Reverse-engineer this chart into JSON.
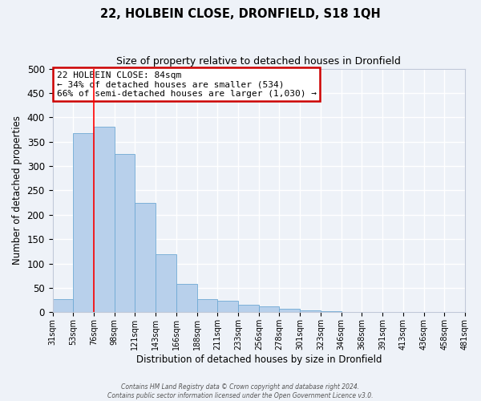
{
  "title": "22, HOLBEIN CLOSE, DRONFIELD, S18 1QH",
  "subtitle": "Size of property relative to detached houses in Dronfield",
  "xlabel": "Distribution of detached houses by size in Dronfield",
  "ylabel": "Number of detached properties",
  "bar_values": [
    27,
    367,
    381,
    325,
    225,
    120,
    58,
    27,
    23,
    15,
    12,
    7,
    4,
    2,
    1,
    1,
    1,
    0,
    0,
    1
  ],
  "bar_labels": [
    "31sqm",
    "53sqm",
    "76sqm",
    "98sqm",
    "121sqm",
    "143sqm",
    "166sqm",
    "188sqm",
    "211sqm",
    "233sqm",
    "256sqm",
    "278sqm",
    "301sqm",
    "323sqm",
    "346sqm",
    "368sqm",
    "391sqm",
    "413sqm",
    "436sqm",
    "458sqm",
    "481sqm"
  ],
  "bar_color": "#b8d0eb",
  "bar_edge_color": "#6faad4",
  "ylim": [
    0,
    500
  ],
  "yticks": [
    0,
    50,
    100,
    150,
    200,
    250,
    300,
    350,
    400,
    450,
    500
  ],
  "red_line_x": 2.0,
  "annotation_title": "22 HOLBEIN CLOSE: 84sqm",
  "annotation_line1": "← 34% of detached houses are smaller (534)",
  "annotation_line2": "66% of semi-detached houses are larger (1,030) →",
  "annotation_box_color": "#ffffff",
  "annotation_box_edge": "#cc0000",
  "footer1": "Contains HM Land Registry data © Crown copyright and database right 2024.",
  "footer2": "Contains public sector information licensed under the Open Government Licence v3.0.",
  "bg_color": "#eef2f8",
  "grid_color": "#ffffff"
}
